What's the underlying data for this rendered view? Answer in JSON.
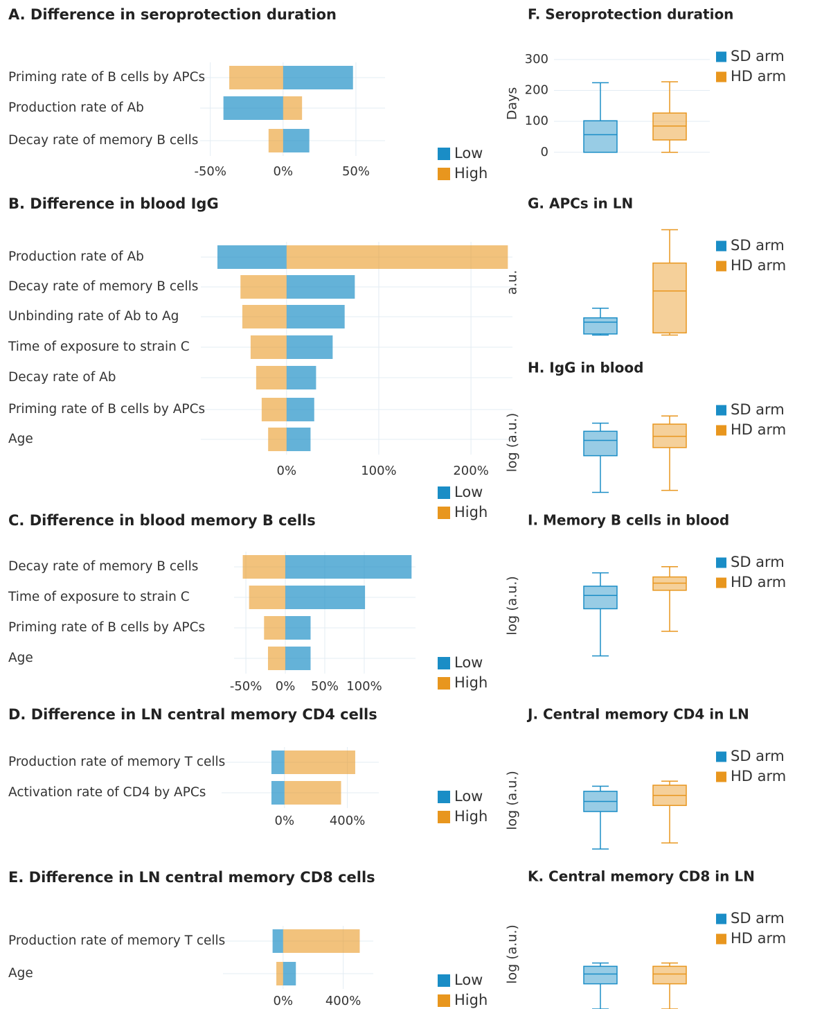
{
  "chart_data": [
    {
      "type": "tornado",
      "title": "A. Difference in seroprotection duration",
      "categories": [
        "Priming rate of B cells by APCs",
        "Production rate of Ab",
        "Decay rate of memory B cells"
      ],
      "series": [
        {
          "name": "Low",
          "color": "#1a8dc6",
          "values": [
            48,
            -41,
            18
          ]
        },
        {
          "name": "High",
          "color": "#e8961e",
          "values": [
            -37,
            13,
            -10
          ]
        }
      ],
      "xlim": [
        -57,
        70
      ],
      "xticks": [
        {
          "value": -50,
          "label": "-50%"
        },
        {
          "value": 0,
          "label": "0%"
        },
        {
          "value": 50,
          "label": "50%"
        }
      ]
    },
    {
      "type": "tornado",
      "title": "B. Difference in blood IgG",
      "categories": [
        "Production rate of Ab",
        "Decay rate of memory B cells",
        "Unbinding rate of Ab to Ag",
        "Time of exposure to strain C",
        "Decay rate of Ab",
        "Priming rate of B cells by APCs",
        "Age"
      ],
      "series": [
        {
          "name": "Low",
          "color": "#1a8dc6",
          "values": [
            -75,
            74,
            63,
            50,
            32,
            30,
            26
          ]
        },
        {
          "name": "High",
          "color": "#e8961e",
          "values": [
            240,
            -50,
            -48,
            -39,
            -33,
            -27,
            -20
          ]
        }
      ],
      "xlim": [
        -93,
        245
      ],
      "xticks": [
        {
          "value": 0,
          "label": "0%"
        },
        {
          "value": 100,
          "label": "100%"
        },
        {
          "value": 200,
          "label": "200%"
        }
      ]
    },
    {
      "type": "tornado",
      "title": "C. Difference in blood memory B cells",
      "categories": [
        "Decay rate of memory B cells",
        "Time of exposure to strain C",
        "Priming rate of B cells by APCs",
        "Age"
      ],
      "series": [
        {
          "name": "Low",
          "color": "#1a8dc6",
          "values": [
            160,
            101,
            32,
            32
          ]
        },
        {
          "name": "High",
          "color": "#e8961e",
          "values": [
            -54,
            -46,
            -27,
            -22
          ]
        }
      ],
      "xlim": [
        -65,
        165
      ],
      "xticks": [
        {
          "value": -50,
          "label": "-50%"
        },
        {
          "value": 0,
          "label": "0%"
        },
        {
          "value": 50,
          "label": "50%"
        },
        {
          "value": 100,
          "label": "100%"
        }
      ]
    },
    {
      "type": "tornado",
      "title": "D. Difference in LN central memory CD4 cells",
      "categories": [
        "Production rate of memory T cells",
        "Activation rate of CD4 by APCs"
      ],
      "series": [
        {
          "name": "Low",
          "color": "#1a8dc6",
          "values": [
            -83,
            -83
          ]
        },
        {
          "name": "High",
          "color": "#e8961e",
          "values": [
            450,
            360
          ]
        }
      ],
      "xlim": [
        -400,
        600
      ],
      "xticks": [
        {
          "value": 0,
          "label": "0%"
        },
        {
          "value": 400,
          "label": "400%"
        }
      ]
    },
    {
      "type": "tornado",
      "title": "E. Difference in LN central memory CD8 cells",
      "categories": [
        "Production rate of memory T cells",
        "Age"
      ],
      "series": [
        {
          "name": "Low",
          "color": "#1a8dc6",
          "values": [
            -70,
            85
          ]
        },
        {
          "name": "High",
          "color": "#e8961e",
          "values": [
            510,
            -45
          ]
        }
      ],
      "xlim": [
        -400,
        600
      ],
      "xticks": [
        {
          "value": 0,
          "label": "0%"
        },
        {
          "value": 400,
          "label": "400%"
        }
      ]
    },
    {
      "type": "box",
      "title": "F. Seroprotection duration",
      "ylabel": "Days",
      "series": [
        {
          "name": "SD arm",
          "color": "#1a8dc6",
          "min": 0,
          "q1": 0,
          "median": 57,
          "q3": 102,
          "max": 225
        },
        {
          "name": "HD arm",
          "color": "#e8961e",
          "min": 0,
          "q1": 40,
          "median": 85,
          "q3": 127,
          "max": 228
        }
      ],
      "ylim": [
        -5,
        320
      ],
      "yticks": [
        0,
        100,
        200,
        300
      ]
    },
    {
      "type": "box",
      "title": "G. APCs in LN",
      "ylabel": "a.u.",
      "series": [
        {
          "name": "SD arm",
          "color": "#1a8dc6",
          "min": 0.01,
          "q1": 0.02,
          "median": 0.13,
          "q3": 0.17,
          "max": 0.26
        },
        {
          "name": "HD arm",
          "color": "#e8961e",
          "min": 0.01,
          "q1": 0.03,
          "median": 0.42,
          "q3": 0.68,
          "max": 0.99
        }
      ],
      "ylim": [
        0,
        1
      ]
    },
    {
      "type": "box",
      "title": "H. IgG in blood",
      "ylabel": "log (a.u.)",
      "series": [
        {
          "name": "SD arm",
          "color": "#1a8dc6",
          "min": 0.01,
          "q1": 0.37,
          "median": 0.52,
          "q3": 0.61,
          "max": 0.69
        },
        {
          "name": "HD arm",
          "color": "#e8961e",
          "min": 0.03,
          "q1": 0.45,
          "median": 0.56,
          "q3": 0.68,
          "max": 0.76
        }
      ],
      "ylim": [
        0,
        1
      ]
    },
    {
      "type": "box",
      "title": "I. Memory B cells in blood",
      "ylabel": "log (a.u.)",
      "series": [
        {
          "name": "SD arm",
          "color": "#1a8dc6",
          "min": 0.01,
          "q1": 0.47,
          "median": 0.6,
          "q3": 0.69,
          "max": 0.82
        },
        {
          "name": "HD arm",
          "color": "#e8961e",
          "min": 0.25,
          "q1": 0.65,
          "median": 0.72,
          "q3": 0.78,
          "max": 0.88
        }
      ],
      "ylim": [
        0,
        1
      ]
    },
    {
      "type": "box",
      "title": "J. Central memory CD4 in LN",
      "ylabel": "log (a.u.)",
      "series": [
        {
          "name": "SD arm",
          "color": "#1a8dc6",
          "min": 0.02,
          "q1": 0.39,
          "median": 0.49,
          "q3": 0.59,
          "max": 0.64
        },
        {
          "name": "HD arm",
          "color": "#e8961e",
          "min": 0.08,
          "q1": 0.45,
          "median": 0.55,
          "q3": 0.65,
          "max": 0.69
        }
      ],
      "ylim": [
        0,
        1
      ]
    },
    {
      "type": "box",
      "title": "K. Central memory CD8 in LN",
      "ylabel": "log (a.u.)",
      "series": [
        {
          "name": "SD arm",
          "color": "#1a8dc6",
          "min": 0,
          "q1": 0.23,
          "median": 0.32,
          "q3": 0.39,
          "max": 0.42
        },
        {
          "name": "HD arm",
          "color": "#e8961e",
          "min": 0,
          "q1": 0.23,
          "median": 0.32,
          "q3": 0.39,
          "max": 0.42
        }
      ],
      "ylim": [
        0,
        1
      ]
    }
  ]
}
